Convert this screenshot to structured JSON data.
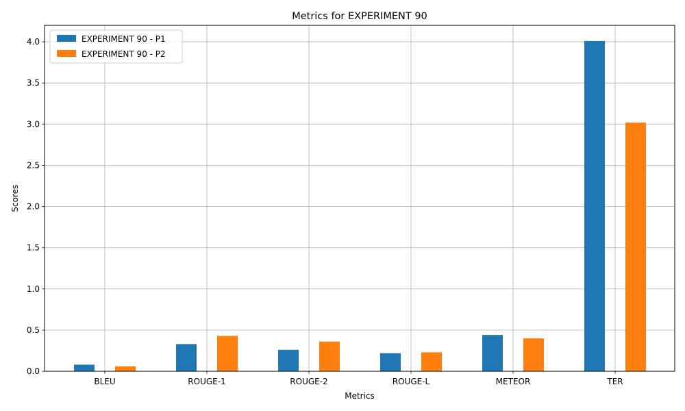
{
  "chart_data": {
    "type": "bar",
    "title": "Metrics for EXPERIMENT 90",
    "xlabel": "Metrics",
    "ylabel": "Scores",
    "categories": [
      "BLEU",
      "ROUGE-1",
      "ROUGE-2",
      "ROUGE-L",
      "METEOR",
      "TER"
    ],
    "series": [
      {
        "name": "EXPERIMENT 90 - P1",
        "color": "#1f77b4",
        "values": [
          0.08,
          0.33,
          0.26,
          0.22,
          0.44,
          4.01
        ]
      },
      {
        "name": "EXPERIMENT 90 - P2",
        "color": "#ff7f0e",
        "values": [
          0.06,
          0.43,
          0.36,
          0.23,
          0.4,
          3.02
        ]
      }
    ],
    "ylim": [
      0,
      4.2
    ],
    "yticks": [
      "0.0",
      "0.5",
      "1.0",
      "1.5",
      "2.0",
      "2.5",
      "3.0",
      "3.5",
      "4.0"
    ],
    "grid": true,
    "legend_position": "top-left"
  }
}
